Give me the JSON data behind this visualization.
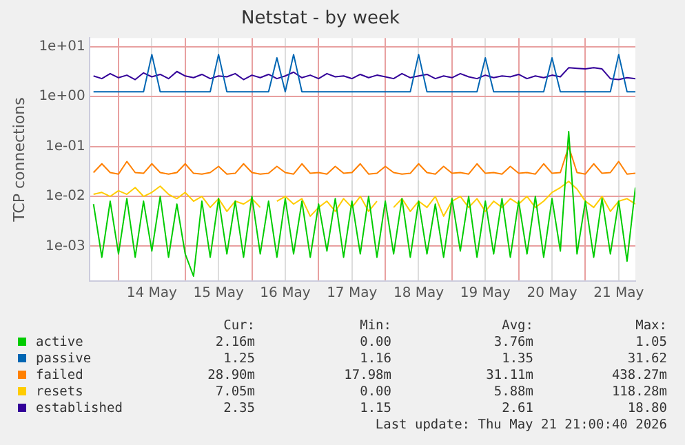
{
  "chart_data": {
    "type": "line",
    "title": "Netstat - by week",
    "ylabel": "TCP connections",
    "log": "y",
    "grid": true,
    "legend": "bottom",
    "marker": "none",
    "line_style": "solid",
    "x": [
      "2026-05-13T15:00",
      "2026-05-13T18:00",
      "2026-05-13T21:00",
      "2026-05-14T00:00",
      "2026-05-14T03:00",
      "2026-05-14T06:00",
      "2026-05-14T09:00",
      "2026-05-14T12:00",
      "2026-05-14T15:00",
      "2026-05-14T18:00",
      "2026-05-14T21:00",
      "2026-05-15T00:00",
      "2026-05-15T03:00",
      "2026-05-15T06:00",
      "2026-05-15T09:00",
      "2026-05-15T12:00",
      "2026-05-15T15:00",
      "2026-05-15T18:00",
      "2026-05-15T21:00",
      "2026-05-16T00:00",
      "2026-05-16T03:00",
      "2026-05-16T06:00",
      "2026-05-16T09:00",
      "2026-05-16T12:00",
      "2026-05-16T15:00",
      "2026-05-16T18:00",
      "2026-05-16T21:00",
      "2026-05-17T00:00",
      "2026-05-17T03:00",
      "2026-05-17T06:00",
      "2026-05-17T09:00",
      "2026-05-17T12:00",
      "2026-05-17T15:00",
      "2026-05-17T18:00",
      "2026-05-17T21:00",
      "2026-05-18T00:00",
      "2026-05-18T03:00",
      "2026-05-18T06:00",
      "2026-05-18T09:00",
      "2026-05-18T12:00",
      "2026-05-18T15:00",
      "2026-05-18T18:00",
      "2026-05-18T21:00",
      "2026-05-19T00:00",
      "2026-05-19T03:00",
      "2026-05-19T06:00",
      "2026-05-19T09:00",
      "2026-05-19T12:00",
      "2026-05-19T15:00",
      "2026-05-19T18:00",
      "2026-05-19T21:00",
      "2026-05-20T00:00",
      "2026-05-20T03:00",
      "2026-05-20T06:00",
      "2026-05-20T09:00",
      "2026-05-20T12:00",
      "2026-05-20T15:00",
      "2026-05-20T18:00",
      "2026-05-20T21:00",
      "2026-05-21T00:00",
      "2026-05-21T03:00",
      "2026-05-21T06:00",
      "2026-05-21T09:00",
      "2026-05-21T12:00",
      "2026-05-21T15:00",
      "2026-05-21T18:00"
    ],
    "xlim": [
      "2026-05-13T13:30",
      "2026-05-21T18:00"
    ],
    "xticks": [
      {
        "value": "2026-05-14T00:00",
        "label": null
      },
      {
        "value": "2026-05-14T12:00",
        "label": "14 May"
      },
      {
        "value": "2026-05-15T00:00",
        "label": null
      },
      {
        "value": "2026-05-15T12:00",
        "label": "15 May"
      },
      {
        "value": "2026-05-16T00:00",
        "label": null
      },
      {
        "value": "2026-05-16T12:00",
        "label": "16 May"
      },
      {
        "value": "2026-05-17T00:00",
        "label": null
      },
      {
        "value": "2026-05-17T12:00",
        "label": "17 May"
      },
      {
        "value": "2026-05-18T00:00",
        "label": null
      },
      {
        "value": "2026-05-18T12:00",
        "label": "18 May"
      },
      {
        "value": "2026-05-19T00:00",
        "label": null
      },
      {
        "value": "2026-05-19T12:00",
        "label": "19 May"
      },
      {
        "value": "2026-05-20T00:00",
        "label": null
      },
      {
        "value": "2026-05-20T12:00",
        "label": "20 May"
      },
      {
        "value": "2026-05-21T00:00",
        "label": null
      },
      {
        "value": "2026-05-21T12:00",
        "label": "21 May"
      }
    ],
    "ylim": [
      0.0002,
      15
    ],
    "yticks": [
      {
        "value": 0.001,
        "label": "1e-03"
      },
      {
        "value": 0.01,
        "label": "1e-02"
      },
      {
        "value": 0.1,
        "label": "1e-01"
      },
      {
        "value": 1,
        "label": "1e+00"
      },
      {
        "value": 10,
        "label": "1e+01"
      }
    ],
    "series": [
      {
        "name": "active",
        "color": "#00cc00",
        "values": [
          0.007,
          0.0006,
          0.008,
          0.0007,
          0.009,
          0.0006,
          0.008,
          0.0008,
          0.01,
          0.0006,
          0.007,
          0.0007,
          0.00025,
          0.008,
          0.0006,
          0.009,
          0.0007,
          0.008,
          0.0006,
          0.01,
          0.0007,
          0.008,
          0.0006,
          0.009,
          0.0007,
          0.008,
          0.0006,
          0.007,
          0.0008,
          0.009,
          0.0006,
          0.008,
          0.0007,
          0.01,
          0.0006,
          0.008,
          0.0007,
          0.009,
          0.0006,
          0.008,
          0.0007,
          0.007,
          0.0006,
          0.009,
          0.0008,
          0.01,
          0.0006,
          0.008,
          0.0007,
          0.009,
          0.0006,
          0.008,
          0.0007,
          0.01,
          0.0006,
          0.009,
          0.0008,
          0.2,
          0.0007,
          0.008,
          0.0006,
          0.009,
          0.0007,
          0.008,
          0.0005,
          0.015
        ]
      },
      {
        "name": "passive",
        "color": "#0066b3",
        "values": [
          1.25,
          1.25,
          1.25,
          1.25,
          1.25,
          1.25,
          1.25,
          7,
          1.25,
          1.25,
          1.25,
          1.25,
          1.25,
          1.25,
          1.25,
          7,
          1.25,
          1.25,
          1.25,
          1.25,
          1.25,
          1.25,
          6,
          1.25,
          7,
          1.25,
          1.25,
          1.25,
          1.25,
          1.25,
          1.25,
          1.25,
          1.25,
          1.25,
          1.25,
          1.25,
          1.25,
          1.25,
          1.25,
          7,
          1.25,
          1.25,
          1.25,
          1.25,
          1.25,
          1.25,
          1.25,
          6,
          1.25,
          1.25,
          1.25,
          1.25,
          1.25,
          1.25,
          1.25,
          6,
          1.25,
          1.25,
          1.25,
          1.25,
          1.25,
          1.25,
          1.25,
          7,
          1.25,
          1.25
        ]
      },
      {
        "name": "failed",
        "color": "#ff8000",
        "values": [
          0.03,
          0.045,
          0.03,
          0.028,
          0.05,
          0.03,
          0.029,
          0.045,
          0.03,
          0.028,
          0.03,
          0.045,
          0.029,
          0.028,
          0.03,
          0.04,
          0.028,
          0.029,
          0.045,
          0.03,
          0.028,
          0.029,
          0.04,
          0.03,
          0.028,
          0.045,
          0.029,
          0.03,
          0.028,
          0.04,
          0.029,
          0.03,
          0.045,
          0.028,
          0.029,
          0.04,
          0.03,
          0.028,
          0.029,
          0.045,
          0.03,
          0.028,
          0.04,
          0.029,
          0.03,
          0.028,
          0.045,
          0.029,
          0.03,
          0.028,
          0.04,
          0.029,
          0.03,
          0.028,
          0.045,
          0.029,
          0.03,
          0.1,
          0.03,
          0.028,
          0.045,
          0.029,
          0.03,
          0.05,
          0.028,
          0.029
        ]
      },
      {
        "name": "resets",
        "color": "#ffcc00",
        "values": [
          0.011,
          0.012,
          0.01,
          0.013,
          0.011,
          0.015,
          0.01,
          0.012,
          0.016,
          0.011,
          0.009,
          0.012,
          0.008,
          0.01,
          0.006,
          0.009,
          0.005,
          0.008,
          0.007,
          0.009,
          0.006,
          null,
          0.008,
          0.01,
          0.007,
          0.009,
          0.004,
          0.006,
          0.008,
          0.005,
          0.009,
          0.006,
          0.01,
          0.005,
          0.008,
          null,
          0.006,
          0.009,
          0.005,
          0.008,
          0.006,
          0.01,
          0.004,
          0.008,
          0.01,
          0.006,
          0.009,
          0.005,
          0.008,
          0.006,
          0.009,
          0.007,
          0.01,
          0.006,
          0.008,
          0.012,
          0.015,
          0.02,
          0.014,
          0.008,
          0.006,
          0.01,
          0.005,
          0.008,
          0.009,
          0.007
        ]
      },
      {
        "name": "established",
        "color": "#330099",
        "values": [
          2.6,
          2.3,
          2.9,
          2.4,
          2.7,
          2.2,
          3.0,
          2.5,
          2.8,
          2.3,
          3.2,
          2.6,
          2.4,
          2.8,
          2.3,
          2.6,
          2.5,
          2.9,
          2.2,
          2.7,
          2.4,
          2.8,
          2.3,
          2.6,
          3.1,
          2.4,
          2.7,
          2.3,
          2.9,
          2.5,
          2.6,
          2.3,
          2.8,
          2.4,
          2.7,
          2.5,
          2.3,
          2.9,
          2.4,
          2.6,
          2.8,
          2.3,
          2.6,
          2.4,
          2.9,
          2.5,
          2.3,
          2.7,
          2.4,
          2.6,
          2.5,
          2.8,
          2.3,
          2.6,
          2.4,
          2.7,
          2.5,
          3.8,
          3.7,
          3.6,
          3.8,
          3.6,
          2.3,
          2.2,
          2.4,
          2.3
        ]
      }
    ],
    "annotations": [
      "Cur:",
      "Min:",
      "Avg:",
      "Max:",
      "2.16m",
      "0.00",
      "3.76m",
      "1.05",
      "1.25",
      "1.16",
      "1.35",
      "31.62",
      "28.90m",
      "17.98m",
      "31.11m",
      "438.27m",
      "7.05m",
      "0.00",
      "5.88m",
      "118.28m",
      "2.35",
      "1.15",
      "2.61",
      "18.80",
      "Last update: Thu May 21 21:00:40 2026"
    ]
  }
}
